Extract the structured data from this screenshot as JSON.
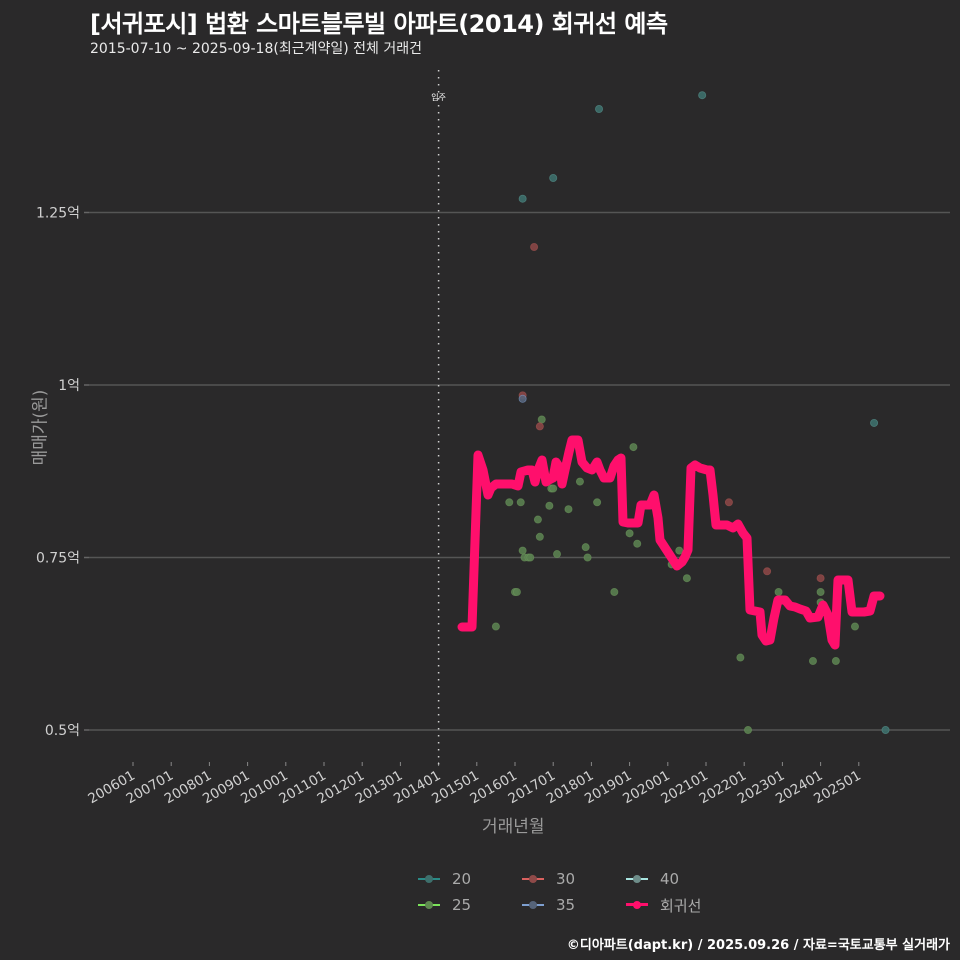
{
  "header": {
    "title": "[서귀포시] 법환 스마트블루빌 아파트(2014) 회귀선 예측",
    "subtitle": "2015-07-10 ~ 2025-09-18(최근계약일) 전체 거래건"
  },
  "footer": {
    "credit": "©디아파트(dapt.kr) / 2025.09.26 / 자료=국토교통부 실거래가"
  },
  "legend": {
    "items": [
      {
        "label": "20",
        "color": "#2a8a86"
      },
      {
        "label": "30",
        "color": "#d9615f"
      },
      {
        "label": "40",
        "color": "#a8e4e0"
      },
      {
        "label": "25",
        "color": "#7be35a"
      },
      {
        "label": "35",
        "color": "#7e9fd0"
      },
      {
        "label": "회귀선",
        "color": "#ff0f6c"
      }
    ]
  },
  "colors": {
    "background": "#2a292a",
    "grid": "#555555",
    "regression": "#ff0f6c",
    "annotation_line": "#cccccc"
  },
  "chart_data": {
    "type": "scatter",
    "title": "[서귀포시] 법환 스마트블루빌 아파트(2014) 회귀선 예측",
    "subtitle": "2015-07-10 ~ 2025-09-18(최근계약일) 전체 거래건",
    "xlabel": "거래년월",
    "ylabel": "매매가(원)",
    "x_ticks": [
      "200601",
      "200701",
      "200801",
      "200901",
      "201001",
      "201101",
      "201201",
      "201301",
      "201401",
      "201501",
      "201601",
      "201701",
      "201801",
      "201901",
      "202001",
      "202101",
      "202201",
      "202301",
      "202401",
      "202501"
    ],
    "y_ticks": [
      {
        "value": 0.5,
        "label": "0.5억"
      },
      {
        "value": 0.75,
        "label": "0.75억"
      },
      {
        "value": 1.0,
        "label": "1억"
      },
      {
        "value": 1.25,
        "label": "1.25억"
      }
    ],
    "ylim": [
      0.46,
      1.48
    ],
    "xlim": [
      2005.2,
      2026.2
    ],
    "grid": "horizontal",
    "legend_position": "bottom",
    "annotation": {
      "x": 2014.0,
      "label": "입주",
      "style": "dotted vertical line"
    },
    "series": [
      {
        "name": "20",
        "color": "#2a8a86",
        "points": [
          [
            2016.2,
            1.27
          ],
          [
            2017.0,
            1.3
          ],
          [
            2018.2,
            1.4
          ],
          [
            2020.9,
            1.42
          ],
          [
            2025.7,
            0.5
          ],
          [
            2025.4,
            0.945
          ]
        ]
      },
      {
        "name": "25",
        "color": "#7be35a",
        "points": [
          [
            2015.5,
            0.65
          ],
          [
            2015.85,
            0.83
          ],
          [
            2016.0,
            0.7
          ],
          [
            2016.05,
            0.7
          ],
          [
            2016.15,
            0.83
          ],
          [
            2016.2,
            0.76
          ],
          [
            2016.25,
            0.75
          ],
          [
            2016.35,
            0.75
          ],
          [
            2016.4,
            0.75
          ],
          [
            2016.6,
            0.805
          ],
          [
            2016.65,
            0.78
          ],
          [
            2016.7,
            0.95
          ],
          [
            2016.9,
            0.825
          ],
          [
            2016.95,
            0.85
          ],
          [
            2017.0,
            0.85
          ],
          [
            2017.1,
            0.755
          ],
          [
            2017.4,
            0.82
          ],
          [
            2017.7,
            0.86
          ],
          [
            2017.85,
            0.765
          ],
          [
            2017.9,
            0.75
          ],
          [
            2018.15,
            0.83
          ],
          [
            2018.6,
            0.7
          ],
          [
            2019.0,
            0.785
          ],
          [
            2019.1,
            0.91
          ],
          [
            2019.2,
            0.77
          ],
          [
            2020.1,
            0.74
          ],
          [
            2020.3,
            0.76
          ],
          [
            2020.5,
            0.72
          ],
          [
            2021.9,
            0.605
          ],
          [
            2022.1,
            0.5
          ],
          [
            2022.9,
            0.7
          ],
          [
            2023.8,
            0.6
          ],
          [
            2024.0,
            0.7
          ],
          [
            2024.0,
            0.685
          ],
          [
            2024.4,
            0.6
          ],
          [
            2024.9,
            0.65
          ]
        ]
      },
      {
        "name": "30",
        "color": "#d9615f",
        "points": [
          [
            2016.2,
            0.985
          ],
          [
            2016.5,
            1.2
          ],
          [
            2016.65,
            0.94
          ],
          [
            2021.6,
            0.83
          ],
          [
            2022.6,
            0.73
          ],
          [
            2024.0,
            0.72
          ]
        ]
      },
      {
        "name": "35",
        "color": "#7e9fd0",
        "points": [
          [
            2016.2,
            0.98
          ]
        ]
      },
      {
        "name": "40",
        "color": "#a8e4e0",
        "points": []
      },
      {
        "name": "회귀선",
        "color": "#ff0f6c",
        "type": "line",
        "points": [
          [
            2014.7,
            0.65
          ],
          [
            2015.0,
            0.65
          ],
          [
            2015.1,
            0.9
          ],
          [
            2015.25,
            0.86
          ],
          [
            2015.35,
            0.84
          ],
          [
            2015.45,
            0.85
          ],
          [
            2015.8,
            0.855
          ],
          [
            2016.2,
            0.855
          ],
          [
            2016.3,
            0.865
          ],
          [
            2016.5,
            0.875
          ],
          [
            2016.75,
            0.875
          ],
          [
            2016.85,
            0.86
          ],
          [
            2017.0,
            0.875
          ],
          [
            2017.15,
            0.86
          ],
          [
            2017.3,
            0.885
          ],
          [
            2017.4,
            0.89
          ],
          [
            2017.5,
            0.88
          ],
          [
            2017.65,
            0.865
          ],
          [
            2017.8,
            0.86
          ],
          [
            2017.9,
            0.865
          ],
          [
            2018.1,
            0.92
          ],
          [
            2018.25,
            0.92
          ],
          [
            2018.4,
            0.885
          ],
          [
            2018.6,
            0.88
          ],
          [
            2018.75,
            0.875
          ],
          [
            2018.95,
            0.875
          ],
          [
            2019.1,
            0.865
          ],
          [
            2019.3,
            0.86
          ],
          [
            2019.5,
            0.885
          ],
          [
            2019.65,
            0.895
          ],
          [
            2019.75,
            0.8
          ],
          [
            2020.0,
            0.8
          ],
          [
            2020.1,
            0.815
          ],
          [
            2020.2,
            0.815
          ],
          [
            2020.35,
            0.8
          ],
          [
            2020.5,
            0.815
          ],
          [
            2020.6,
            0.8
          ],
          [
            2020.75,
            0.825
          ],
          [
            2020.9,
            0.825
          ],
          [
            2021.0,
            0.82
          ],
          [
            2021.1,
            0.835
          ],
          [
            2021.25,
            0.8
          ],
          [
            2021.35,
            0.835
          ],
          [
            2021.45,
            0.835
          ],
          [
            2021.6,
            0.77
          ],
          [
            2021.7,
            0.77
          ],
          [
            2021.8,
            0.835
          ],
          [
            2021.9,
            0.825
          ],
          [
            2022.0,
            0.78
          ]
        ]
      }
    ],
    "regression_line_pixel_hint": "stepwise ~0.65억 (2015) rising to ~0.92억 (2018 peak), ~0.80억 (2019-2020), dip to ~0.74억 (2020), peak ~0.885억 (2021), ~0.795억 (2021-2022), drop to ~0.63-0.69억 (2022-2024), spike ~0.73억 (2024), ~0.68-0.70억 (2025)"
  },
  "axes": {
    "ylabel": "매매가(원)",
    "xlabel": "거래년월",
    "annotation_label": "입주"
  }
}
